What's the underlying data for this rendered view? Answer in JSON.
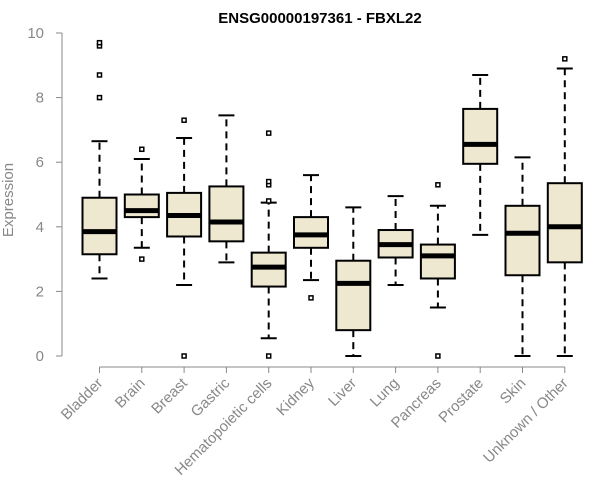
{
  "chart_data": {
    "type": "boxplot",
    "title": "ENSG00000197361 - FBXL22",
    "xlabel": "",
    "ylabel": "Expression",
    "ylim": [
      0,
      10
    ],
    "yticks": [
      0,
      2,
      4,
      6,
      8,
      10
    ],
    "grid": false,
    "box_color": "#EEE8D0",
    "median_color": "#000000",
    "categories": [
      "Bladder",
      "Brain",
      "Breast",
      "Gastric",
      "Hematopoietic cells",
      "Kidney",
      "Liver",
      "Lung",
      "Pancreas",
      "Prostate",
      "Skin",
      "Unknown / Other"
    ],
    "boxes": [
      {
        "whisker_low": 2.4,
        "q1": 3.15,
        "median": 3.85,
        "q3": 4.9,
        "whisker_high": 6.65,
        "outliers": [
          8.0,
          8.7,
          9.6,
          9.7
        ]
      },
      {
        "whisker_low": 3.35,
        "q1": 4.3,
        "median": 4.5,
        "q3": 5.0,
        "whisker_high": 6.1,
        "outliers": [
          3.0,
          6.4
        ]
      },
      {
        "whisker_low": 2.2,
        "q1": 3.7,
        "median": 4.35,
        "q3": 5.05,
        "whisker_high": 6.75,
        "outliers": [
          0.0,
          7.3
        ]
      },
      {
        "whisker_low": 2.9,
        "q1": 3.55,
        "median": 4.15,
        "q3": 5.25,
        "whisker_high": 7.45,
        "outliers": []
      },
      {
        "whisker_low": 0.55,
        "q1": 2.15,
        "median": 2.75,
        "q3": 3.2,
        "whisker_high": 4.75,
        "outliers": [
          0.0,
          4.8,
          5.3,
          5.4,
          6.9
        ]
      },
      {
        "whisker_low": 2.35,
        "q1": 3.35,
        "median": 3.75,
        "q3": 4.3,
        "whisker_high": 5.6,
        "outliers": [
          1.8
        ]
      },
      {
        "whisker_low": 0.0,
        "q1": 0.8,
        "median": 2.25,
        "q3": 2.95,
        "whisker_high": 4.6,
        "outliers": []
      },
      {
        "whisker_low": 2.2,
        "q1": 3.05,
        "median": 3.45,
        "q3": 3.9,
        "whisker_high": 4.95,
        "outliers": []
      },
      {
        "whisker_low": 1.5,
        "q1": 2.4,
        "median": 3.1,
        "q3": 3.45,
        "whisker_high": 4.65,
        "outliers": [
          0.0,
          5.3
        ]
      },
      {
        "whisker_low": 3.75,
        "q1": 5.95,
        "median": 6.55,
        "q3": 7.65,
        "whisker_high": 8.7,
        "outliers": []
      },
      {
        "whisker_low": 0.0,
        "q1": 2.5,
        "median": 3.8,
        "q3": 4.65,
        "whisker_high": 6.15,
        "outliers": []
      },
      {
        "whisker_low": 0.0,
        "q1": 2.9,
        "median": 4.0,
        "q3": 5.35,
        "whisker_high": 8.9,
        "outliers": [
          9.2
        ]
      }
    ]
  }
}
